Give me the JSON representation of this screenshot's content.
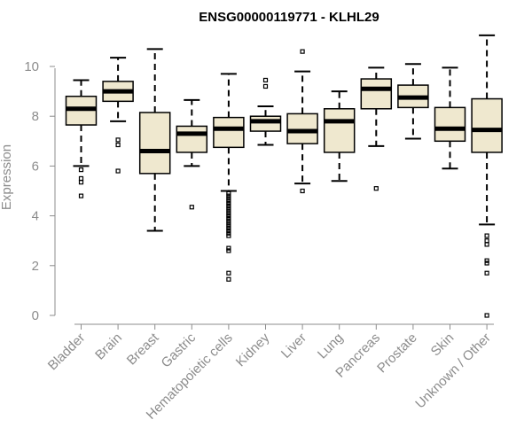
{
  "chart_data": {
    "type": "boxplot",
    "title": "ENSG00000119771 - KLHL29",
    "xlabel": "",
    "ylabel": "Expression",
    "ylim": [
      0,
      11.3
    ],
    "yticks": [
      0,
      2,
      4,
      6,
      8,
      10
    ],
    "box_color": "#efe8cf",
    "categories": [
      "Bladder",
      "Brain",
      "Breast",
      "Gastric",
      "Hematopoietic cells",
      "Kidney",
      "Liver",
      "Lung",
      "Pancreas",
      "Prostate",
      "Skin",
      "Unknown / Other"
    ],
    "boxes": [
      {
        "name": "Bladder",
        "whisker_low": 6.0,
        "q1": 7.65,
        "median": 8.3,
        "q3": 8.8,
        "whisker_high": 9.45,
        "outliers": [
          5.85,
          5.5,
          5.35,
          4.8
        ]
      },
      {
        "name": "Brain",
        "whisker_low": 7.8,
        "q1": 8.6,
        "median": 9.0,
        "q3": 9.4,
        "whisker_high": 10.35,
        "outliers": [
          7.05,
          6.85,
          5.8
        ]
      },
      {
        "name": "Breast",
        "whisker_low": 3.4,
        "q1": 5.7,
        "median": 6.6,
        "q3": 8.15,
        "whisker_high": 10.7,
        "outliers": []
      },
      {
        "name": "Gastric",
        "whisker_low": 6.0,
        "q1": 6.55,
        "median": 7.3,
        "q3": 7.6,
        "whisker_high": 8.65,
        "outliers": [
          4.35
        ]
      },
      {
        "name": "Hematopoietic cells",
        "whisker_low": 5.0,
        "q1": 6.75,
        "median": 7.5,
        "q3": 7.95,
        "whisker_high": 9.7,
        "outliers": [
          4.9,
          4.8,
          4.7,
          4.6,
          4.5,
          4.4,
          4.3,
          4.2,
          4.1,
          4.0,
          3.9,
          3.8,
          3.7,
          3.6,
          3.5,
          3.4,
          3.3,
          3.2,
          2.7,
          2.6,
          1.7,
          1.45
        ]
      },
      {
        "name": "Kidney",
        "whisker_low": 6.85,
        "q1": 7.4,
        "median": 7.8,
        "q3": 8.0,
        "whisker_high": 8.4,
        "outliers": [
          9.45,
          9.2
        ]
      },
      {
        "name": "Liver",
        "whisker_low": 5.3,
        "q1": 6.9,
        "median": 7.4,
        "q3": 8.1,
        "whisker_high": 9.8,
        "outliers": [
          10.6,
          5.0
        ]
      },
      {
        "name": "Lung",
        "whisker_low": 5.4,
        "q1": 6.55,
        "median": 7.8,
        "q3": 8.3,
        "whisker_high": 9.0,
        "outliers": []
      },
      {
        "name": "Pancreas",
        "whisker_low": 6.8,
        "q1": 8.3,
        "median": 9.1,
        "q3": 9.5,
        "whisker_high": 9.95,
        "outliers": [
          5.1
        ]
      },
      {
        "name": "Prostate",
        "whisker_low": 7.1,
        "q1": 8.35,
        "median": 8.75,
        "q3": 9.25,
        "whisker_high": 10.1,
        "outliers": []
      },
      {
        "name": "Skin",
        "whisker_low": 5.9,
        "q1": 7.0,
        "median": 7.5,
        "q3": 8.35,
        "whisker_high": 9.95,
        "outliers": []
      },
      {
        "name": "Unknown / Other",
        "whisker_low": 3.65,
        "q1": 6.55,
        "median": 7.45,
        "q3": 8.7,
        "whisker_high": 11.25,
        "outliers": [
          3.2,
          3.0,
          2.85,
          2.2,
          2.1,
          1.7,
          0.0
        ]
      }
    ]
  }
}
